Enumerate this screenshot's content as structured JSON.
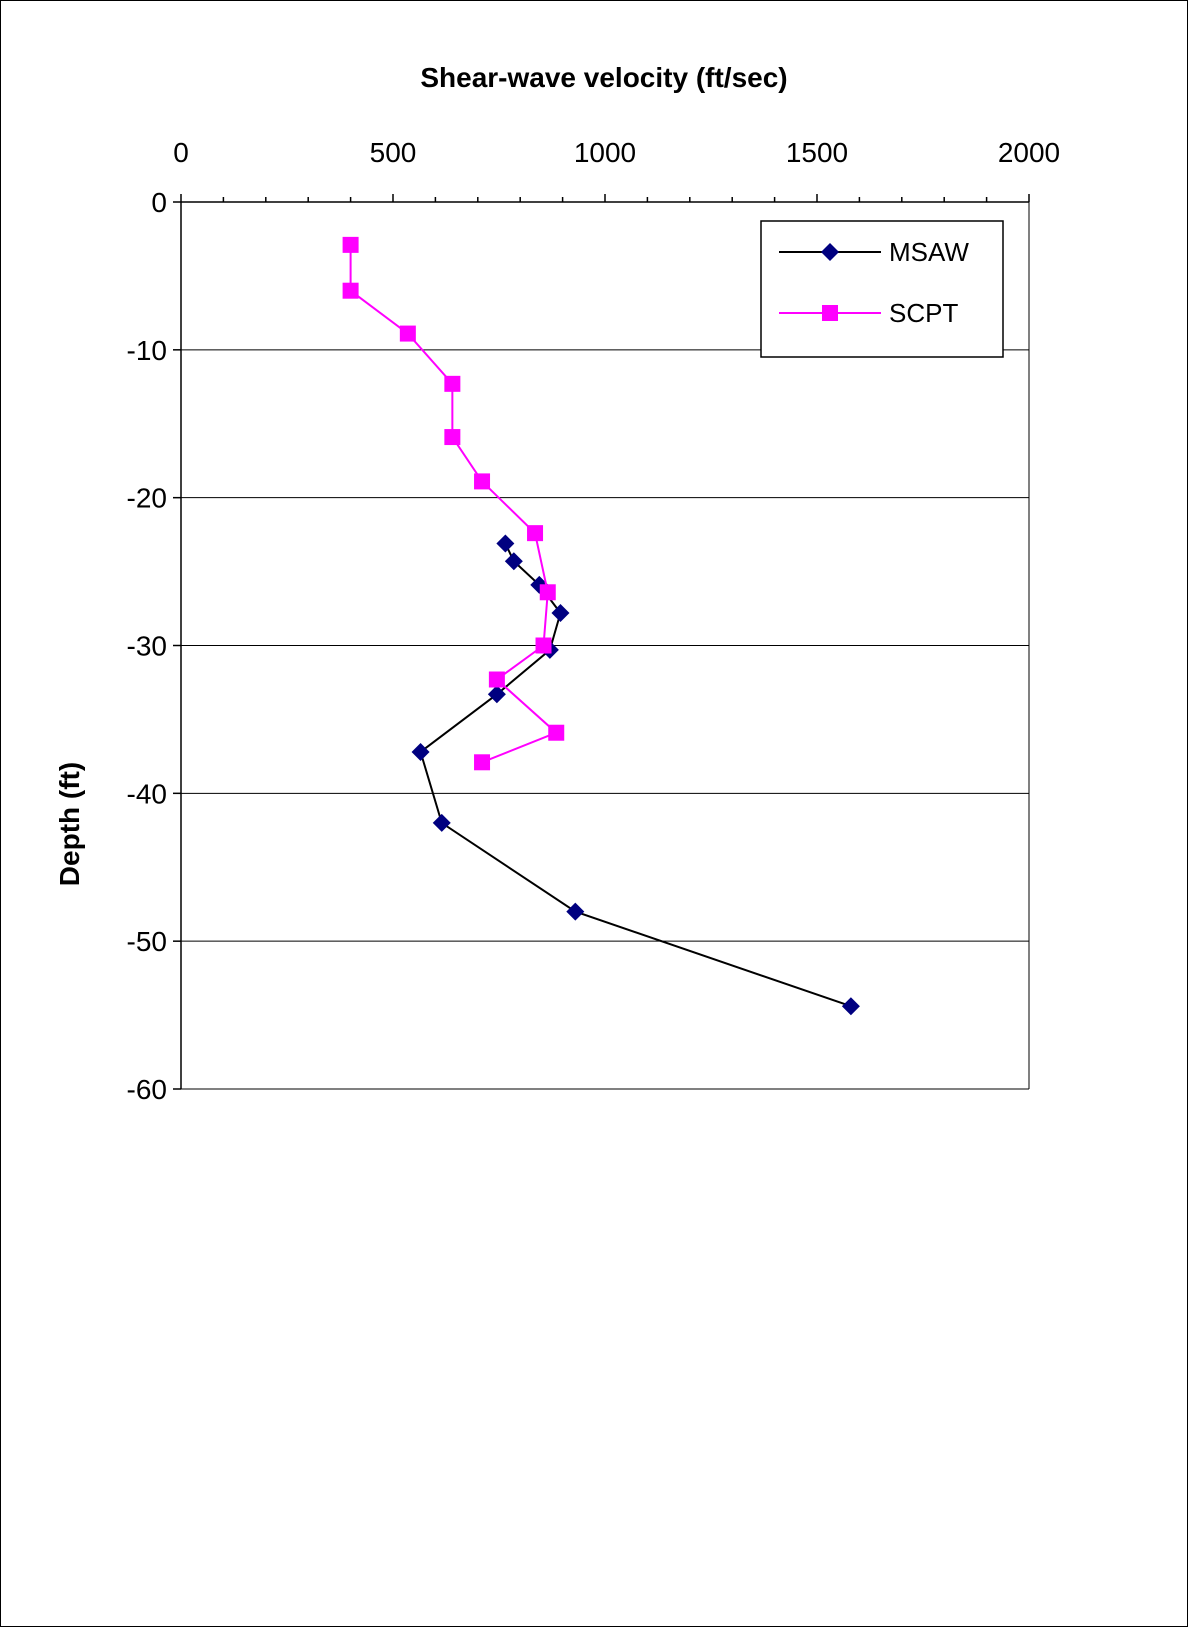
{
  "chart_data": {
    "type": "line",
    "title": "",
    "xlabel": "Shear-wave velocity (ft/sec)",
    "ylabel": "Depth (ft)",
    "xlim": [
      0,
      2000
    ],
    "ylim": [
      -60,
      0
    ],
    "x_ticks": [
      "0",
      "500",
      "1000",
      "1500",
      "2000"
    ],
    "y_ticks": [
      "0",
      "-10",
      "-20",
      "-30",
      "-40",
      "-50",
      "-60"
    ],
    "x_axis_position": "top",
    "grid": "horizontal major gridlines",
    "legend_position": "top-right",
    "series": [
      {
        "name": "MSAW",
        "color": "#000080",
        "line_color": "#000000",
        "marker": "diamond",
        "points": [
          {
            "x": 765,
            "y": -23.1
          },
          {
            "x": 785,
            "y": -24.3
          },
          {
            "x": 845,
            "y": -25.9
          },
          {
            "x": 895,
            "y": -27.8
          },
          {
            "x": 870,
            "y": -30.3
          },
          {
            "x": 745,
            "y": -33.3
          },
          {
            "x": 565,
            "y": -37.2
          },
          {
            "x": 615,
            "y": -42.0
          },
          {
            "x": 930,
            "y": -48.0
          },
          {
            "x": 1580,
            "y": -54.4
          }
        ]
      },
      {
        "name": "SCPT",
        "color": "#FF00FF",
        "line_color": "#FF00FF",
        "marker": "square",
        "points": [
          {
            "x": 400,
            "y": -2.9
          },
          {
            "x": 400,
            "y": -6.0
          },
          {
            "x": 535,
            "y": -8.9
          },
          {
            "x": 640,
            "y": -12.3
          },
          {
            "x": 640,
            "y": -15.9
          },
          {
            "x": 710,
            "y": -18.9
          },
          {
            "x": 835,
            "y": -22.4
          },
          {
            "x": 865,
            "y": -26.4
          },
          {
            "x": 855,
            "y": -30.0
          },
          {
            "x": 745,
            "y": -32.3
          },
          {
            "x": 885,
            "y": -35.9
          },
          {
            "x": 710,
            "y": -37.9
          }
        ]
      }
    ]
  }
}
